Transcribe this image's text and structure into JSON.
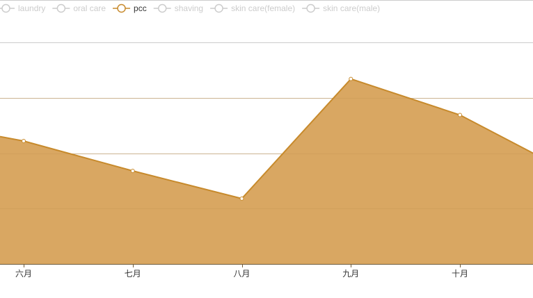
{
  "chart_data": {
    "type": "area",
    "categories": [
      "六月",
      "七月",
      "八月",
      "九月",
      "十月"
    ],
    "legend": {
      "position": "top-left",
      "items": [
        {
          "name": "laundry",
          "active": false
        },
        {
          "name": "oral care",
          "active": false
        },
        {
          "name": "pcc",
          "active": true
        },
        {
          "name": "shaving",
          "active": false
        },
        {
          "name": "skin care(female)",
          "active": false
        },
        {
          "name": "skin care(male)",
          "active": false
        }
      ]
    },
    "series": [
      {
        "name": "pcc",
        "values": [
          222,
          168,
          118,
          334,
          269
        ],
        "left_edge_value": 230,
        "right_edge_value": 200,
        "color": "#c78a2c",
        "fill_color": "#d9a762"
      }
    ],
    "ylim": [
      0,
      400
    ],
    "y_gridlines": [
      0,
      100,
      200,
      300,
      400
    ],
    "grid": true,
    "colors": {
      "inactive_legend": "#cccccc",
      "active_legend_text": "#333333",
      "axis": "#6e5a3a",
      "gridline": "#cccccc"
    }
  }
}
